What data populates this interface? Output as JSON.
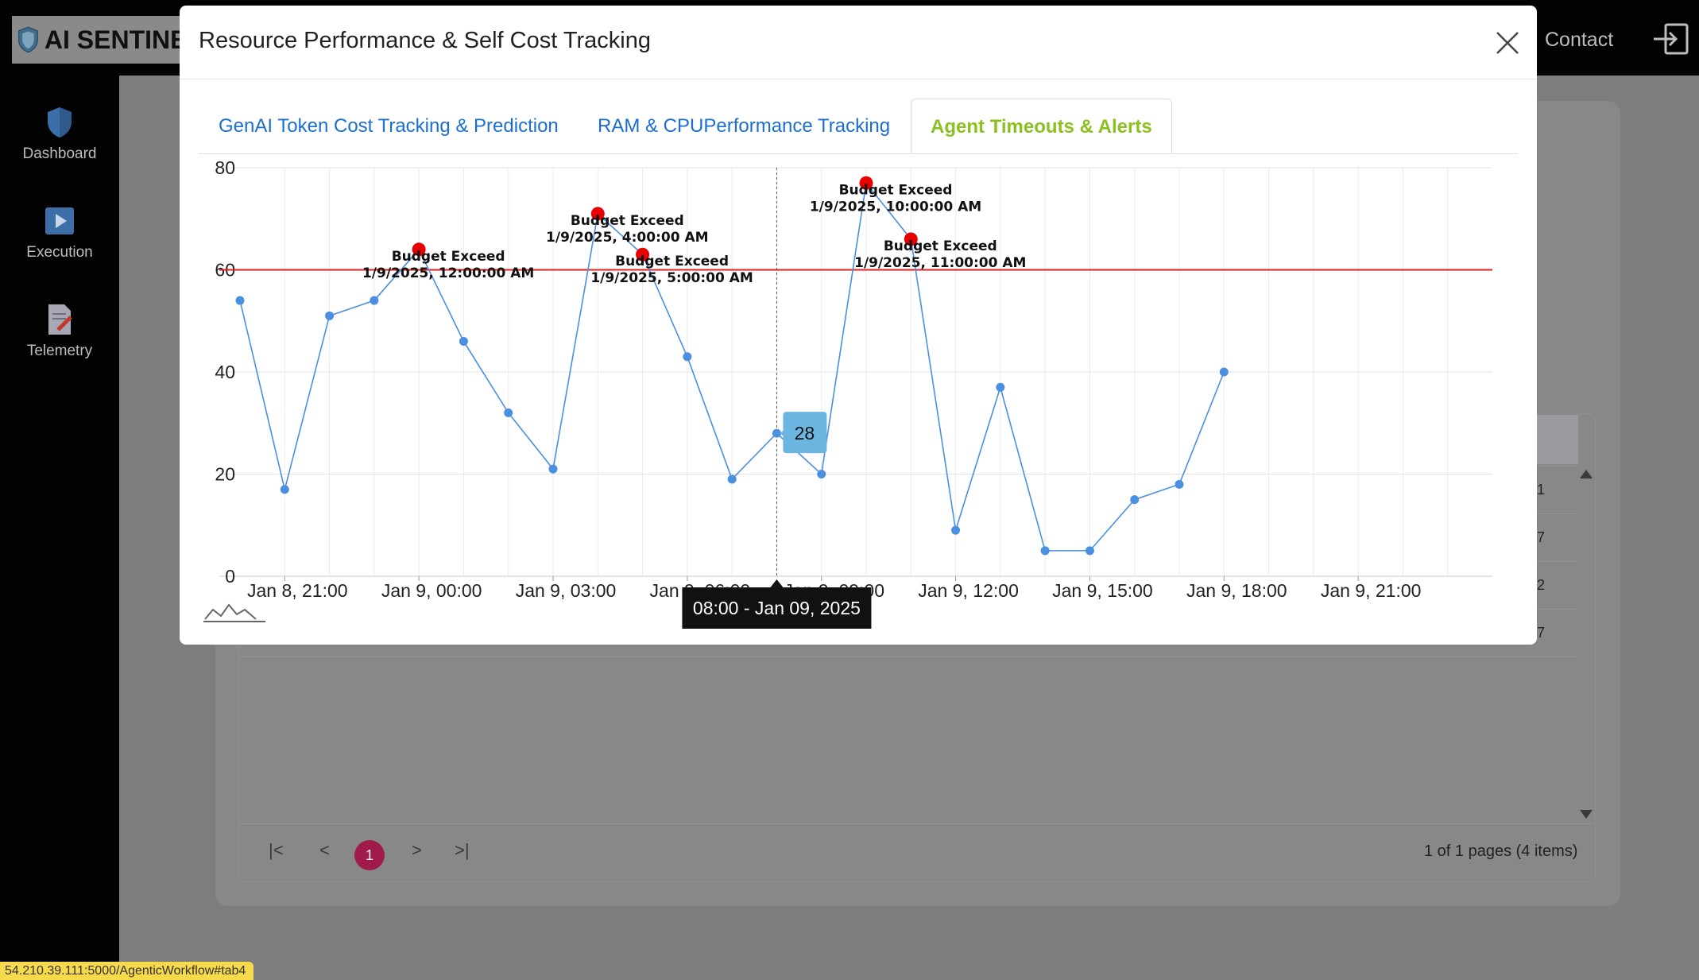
{
  "app": {
    "title": "AI SENTINEL",
    "contact_label": "Contact"
  },
  "sidebar": {
    "items": [
      {
        "label": "Dashboard",
        "icon": "shield-icon"
      },
      {
        "label": "Execution",
        "icon": "play-icon"
      },
      {
        "label": "Telemetry",
        "icon": "document-edit-icon"
      }
    ]
  },
  "background_table": {
    "cells": [
      "1",
      "7",
      "2",
      "7"
    ],
    "pager": {
      "first": "|<",
      "prev": "<",
      "current": "1",
      "next": ">",
      "last": ">|"
    },
    "page_info": "1 of 1 pages (4 items)"
  },
  "status_url": "54.210.39.111:5000/AgenticWorkflow#tab4",
  "modal": {
    "title": "Resource Performance & Self Cost Tracking",
    "tabs": [
      {
        "label": "GenAI Token Cost Tracking & Prediction",
        "active": false
      },
      {
        "label": "RAM & CPUPerformance Tracking",
        "active": false
      },
      {
        "label": "Agent Timeouts & Alerts",
        "active": true
      }
    ]
  },
  "colors": {
    "accent_tab": "#8cc021",
    "link": "#1a6fd1",
    "series": "#4a8fe0",
    "threshold": "#e02020",
    "alert": "#e80000",
    "tooltip": "#6bb6e0"
  },
  "chart_data": {
    "type": "line",
    "x_ticks": [
      "Jan 8, 21:00",
      "Jan 9, 00:00",
      "Jan 9, 03:00",
      "Jan 9, 06:00",
      "Jan 9, 09:00",
      "Jan 9, 12:00",
      "Jan 9, 15:00",
      "Jan 9, 18:00",
      "Jan 9, 21:00"
    ],
    "y_ticks": [
      "0",
      "20",
      "40",
      "60",
      "80"
    ],
    "ylim": [
      0,
      80
    ],
    "xlim": [
      "2025-01-08T20:00",
      "2025-01-10T00:00"
    ],
    "grid": true,
    "threshold": 60,
    "series": [
      {
        "x": [
          "2025-01-08T20:00",
          "2025-01-08T21:00",
          "2025-01-08T22:00",
          "2025-01-08T23:00",
          "2025-01-09T00:00",
          "2025-01-09T01:00",
          "2025-01-09T02:00",
          "2025-01-09T03:00",
          "2025-01-09T04:00",
          "2025-01-09T05:00",
          "2025-01-09T06:00",
          "2025-01-09T07:00",
          "2025-01-09T08:00",
          "2025-01-09T09:00",
          "2025-01-09T10:00",
          "2025-01-09T11:00",
          "2025-01-09T12:00",
          "2025-01-09T13:00",
          "2025-01-09T14:00",
          "2025-01-09T15:00",
          "2025-01-09T16:00",
          "2025-01-09T17:00",
          "2025-01-09T18:00"
        ],
        "values": [
          54,
          17,
          51,
          54,
          64,
          46,
          32,
          21,
          71,
          63,
          43,
          19,
          28,
          20,
          77,
          66,
          9,
          37,
          5,
          5,
          15,
          18,
          40
        ]
      }
    ],
    "annotations": [
      {
        "label": "Budget Exceed",
        "time": "1/9/2025, 12:00:00 AM",
        "x": "2025-01-09T00:00",
        "y": 64
      },
      {
        "label": "Budget Exceed",
        "time": "1/9/2025, 4:00:00 AM",
        "x": "2025-01-09T04:00",
        "y": 71
      },
      {
        "label": "Budget Exceed",
        "time": "1/9/2025, 5:00:00 AM",
        "x": "2025-01-09T05:00",
        "y": 63
      },
      {
        "label": "Budget Exceed",
        "time": "1/9/2025, 10:00:00 AM",
        "x": "2025-01-09T10:00",
        "y": 77
      },
      {
        "label": "Budget Exceed",
        "time": "1/9/2025, 11:00:00 AM",
        "x": "2025-01-09T11:00",
        "y": 66
      }
    ],
    "hover": {
      "x": "2025-01-09T08:00",
      "value": "28",
      "crosshair_label": "08:00 - Jan 09, 2025"
    }
  }
}
